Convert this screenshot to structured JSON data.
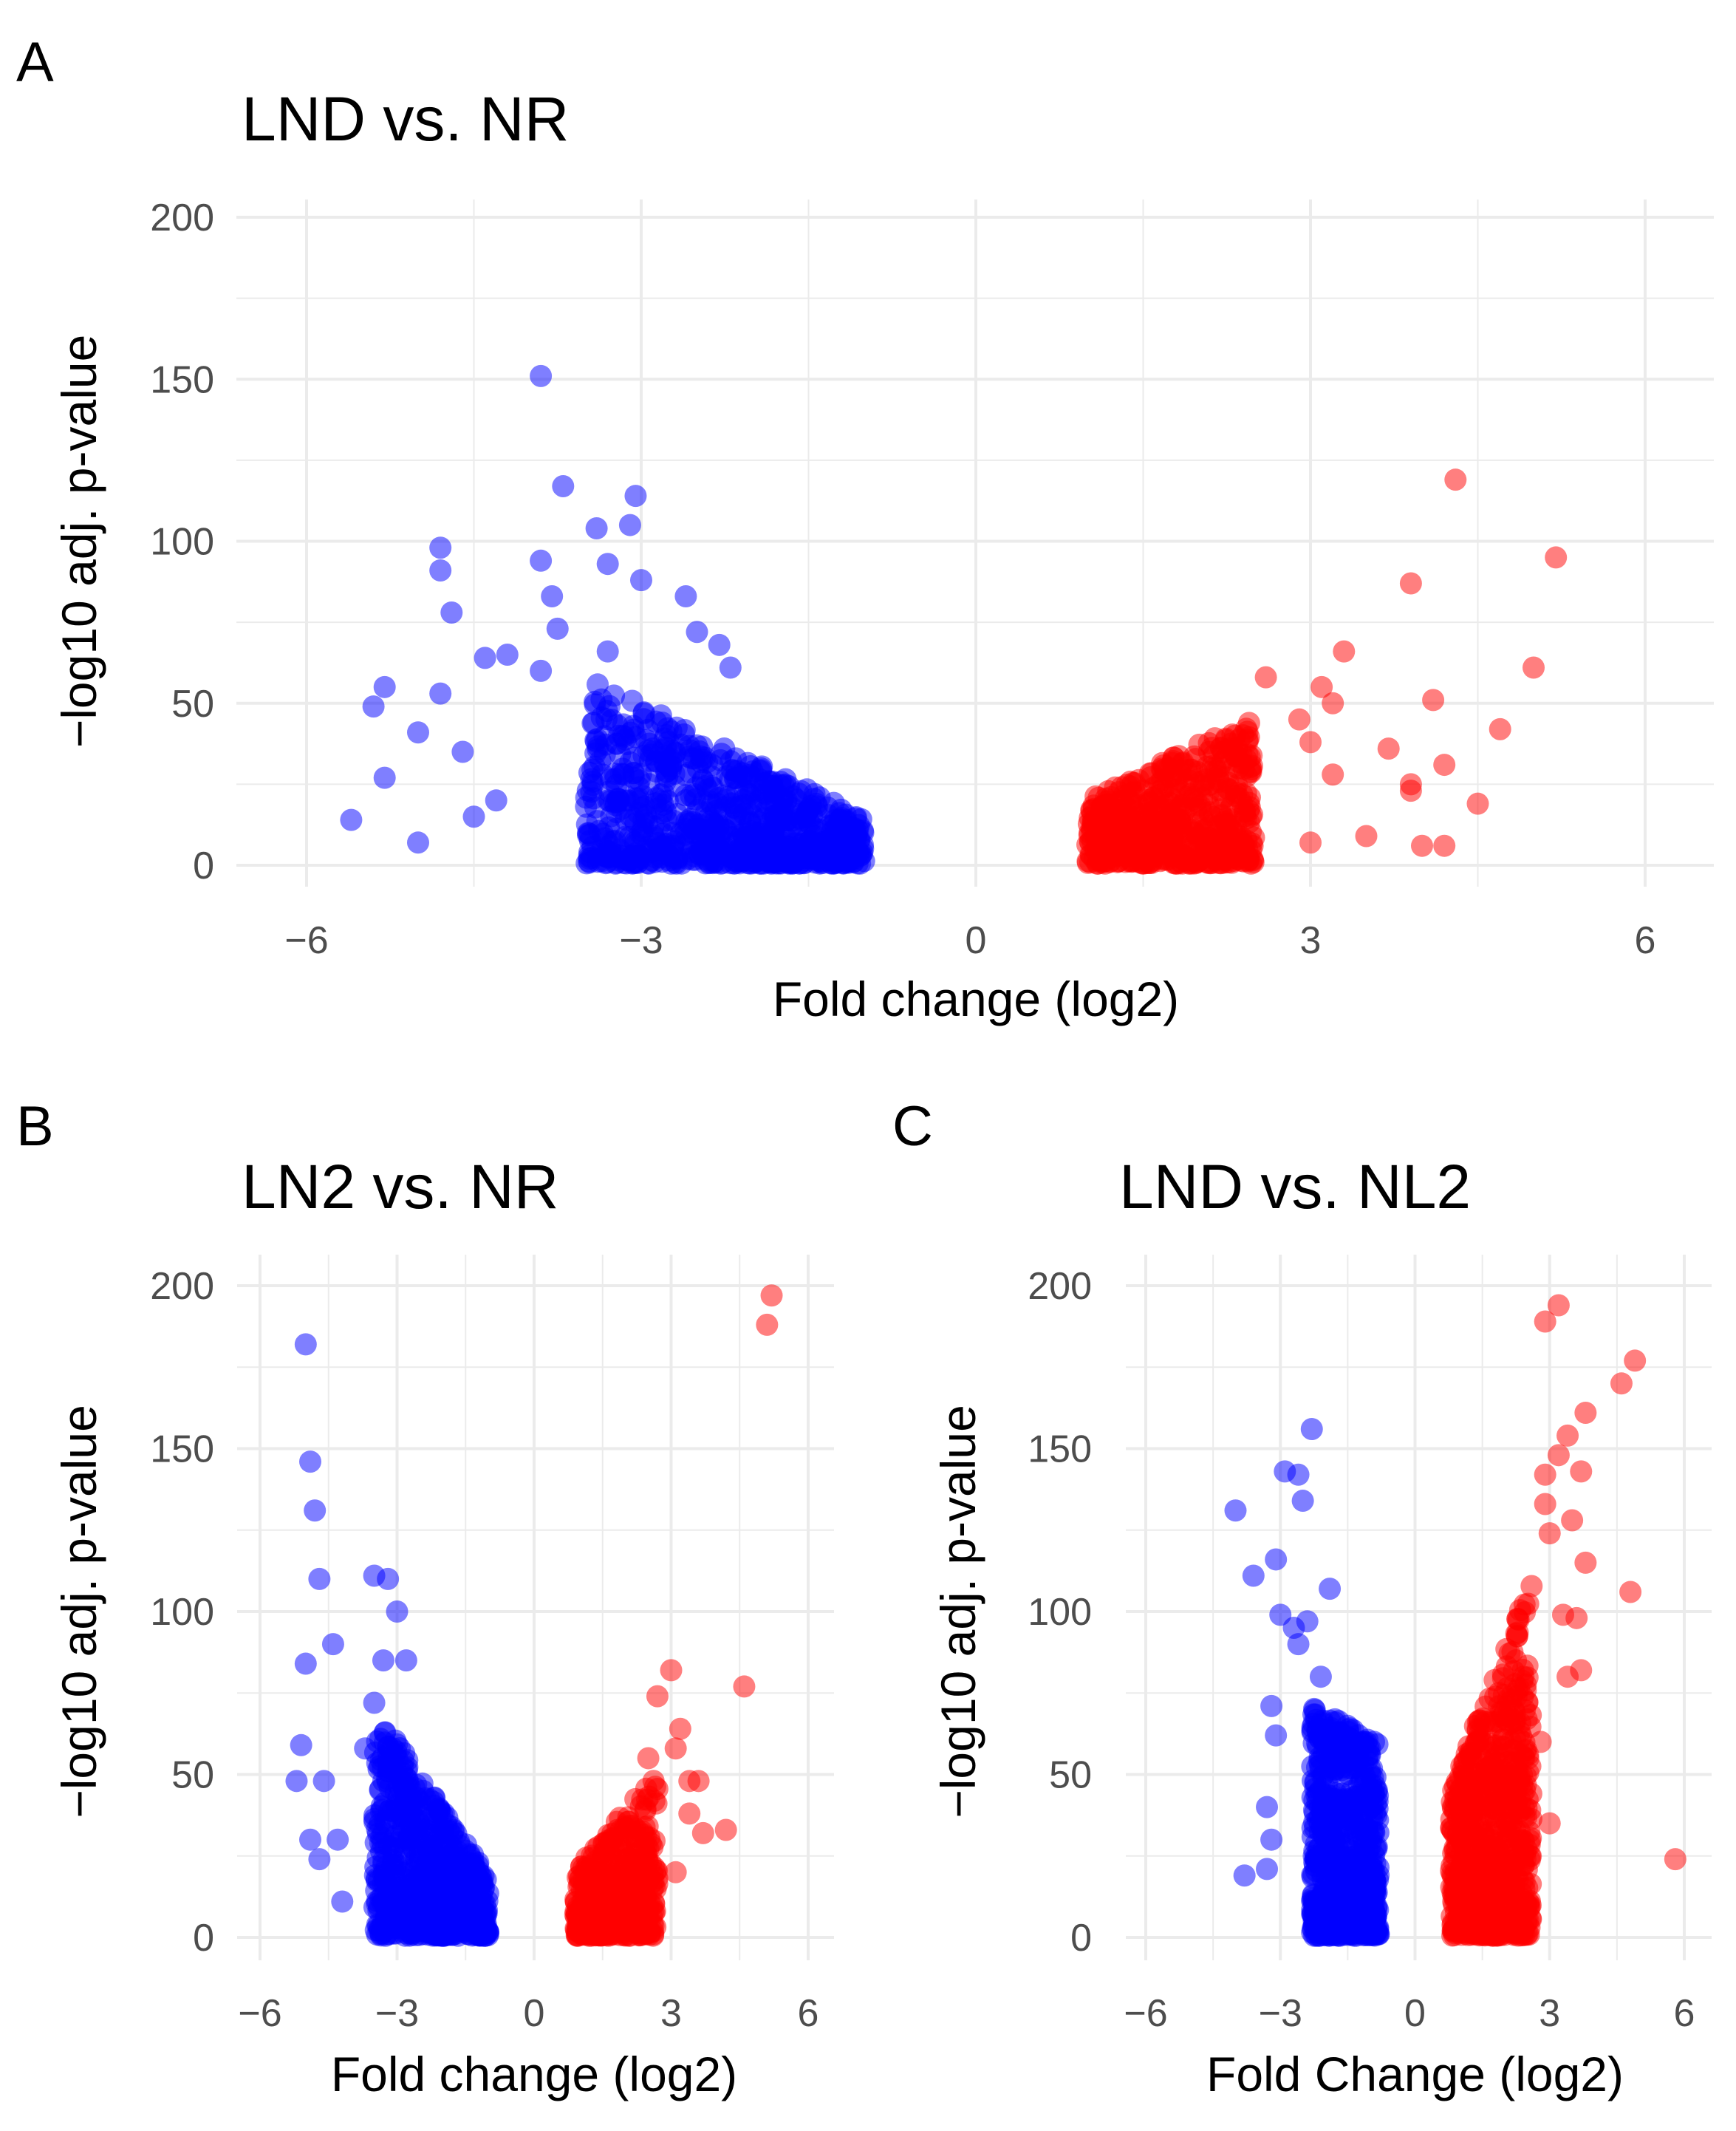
{
  "colors": {
    "down": "#0000ff",
    "up": "#ff0000",
    "grid": "#ebebeb"
  },
  "chart_data": [
    {
      "type": "scatter",
      "panel_letter": "A",
      "title": "LND vs. NR",
      "xlabel": "Fold change (log2)",
      "ylabel": "−log10 adj. p-value",
      "xlim": [
        -6.6,
        6.6
      ],
      "ylim": [
        -8,
        208
      ],
      "xticks": [
        -6,
        -3,
        0,
        3,
        6
      ],
      "xtick_labels": [
        "−6",
        "−3",
        "0",
        "3",
        "6"
      ],
      "yticks": [
        0,
        50,
        100,
        150,
        200
      ],
      "ytick_labels": [
        "0",
        "50",
        "100",
        "150",
        "200"
      ],
      "grid": true,
      "series": [
        {
          "name": "down",
          "color": "#0000ff",
          "points": [
            [
              -3.9,
              151
            ],
            [
              -3.7,
              117
            ],
            [
              -3.05,
              114
            ],
            [
              -3.4,
              104
            ],
            [
              -3.1,
              105
            ],
            [
              -4.8,
              98
            ],
            [
              -4.8,
              91
            ],
            [
              -3.9,
              94
            ],
            [
              -4.7,
              78
            ],
            [
              -3.3,
              93
            ],
            [
              -3.0,
              88
            ],
            [
              -2.6,
              83
            ],
            [
              -3.8,
              83
            ],
            [
              -3.75,
              73
            ],
            [
              -2.5,
              72
            ],
            [
              -4.2,
              65
            ],
            [
              -4.4,
              64
            ],
            [
              -3.9,
              60
            ],
            [
              -5.3,
              55
            ],
            [
              -5.4,
              49
            ],
            [
              -4.8,
              53
            ],
            [
              -5.0,
              41
            ],
            [
              -5.3,
              27
            ],
            [
              -5.6,
              14
            ],
            [
              -5.0,
              7
            ],
            [
              -3.3,
              66
            ],
            [
              -2.3,
              68
            ],
            [
              -2.2,
              61
            ],
            [
              -4.6,
              35
            ],
            [
              -4.3,
              20
            ],
            [
              -4.5,
              15
            ]
          ],
          "cluster": {
            "x": [
              -3.5,
              -1.0
            ],
            "ymax_at_xmin": 58,
            "ymax_at_xmax": 14,
            "count": 800
          }
        },
        {
          "name": "up",
          "color": "#ff0000",
          "points": [
            [
              4.3,
              119
            ],
            [
              5.2,
              95
            ],
            [
              3.9,
              87
            ],
            [
              3.3,
              66
            ],
            [
              5.0,
              61
            ],
            [
              2.6,
              58
            ],
            [
              3.1,
              55
            ],
            [
              3.2,
              50
            ],
            [
              4.1,
              51
            ],
            [
              4.7,
              42
            ],
            [
              3.7,
              36
            ],
            [
              4.2,
              31
            ],
            [
              3.9,
              23
            ],
            [
              4.5,
              19
            ],
            [
              4.2,
              6
            ],
            [
              4.0,
              6
            ],
            [
              3.0,
              7
            ],
            [
              3.5,
              9
            ],
            [
              3.9,
              25
            ],
            [
              3.0,
              38
            ],
            [
              2.9,
              45
            ],
            [
              3.2,
              28
            ]
          ],
          "cluster": {
            "x": [
              1.0,
              2.5
            ],
            "ymax_at_xmin": 20,
            "ymax_at_xmax": 45,
            "count": 550
          }
        }
      ]
    },
    {
      "type": "scatter",
      "panel_letter": "B",
      "title": "LN2 vs. NR",
      "xlabel": "Fold change (log2)",
      "ylabel": "−log10 adj. p-value",
      "xlim": [
        -6.6,
        6.6
      ],
      "ylim": [
        -8,
        208
      ],
      "xticks": [
        -6,
        -3,
        0,
        3,
        6
      ],
      "xtick_labels": [
        "−6",
        "−3",
        "0",
        "3",
        "6"
      ],
      "yticks": [
        0,
        50,
        100,
        150,
        200
      ],
      "ytick_labels": [
        "0",
        "50",
        "100",
        "150",
        "200"
      ],
      "grid": true,
      "series": [
        {
          "name": "down",
          "color": "#0000ff",
          "points": [
            [
              -5,
              182
            ],
            [
              -4.9,
              146
            ],
            [
              -4.8,
              131
            ],
            [
              -4.7,
              110
            ],
            [
              -5.0,
              84
            ],
            [
              -4.4,
              90
            ],
            [
              -3.5,
              111
            ],
            [
              -3.2,
              110
            ],
            [
              -3.0,
              100
            ],
            [
              -2.8,
              85
            ],
            [
              -3.3,
              85
            ],
            [
              -5.1,
              59
            ],
            [
              -5.2,
              48
            ],
            [
              -4.6,
              48
            ],
            [
              -4.9,
              30
            ],
            [
              -4.7,
              24
            ],
            [
              -3.5,
              72
            ],
            [
              -4.3,
              30
            ],
            [
              -4.2,
              11
            ],
            [
              -3.3,
              48
            ],
            [
              -3.7,
              58
            ]
          ],
          "cluster": {
            "x": [
              -3.5,
              -1.0
            ],
            "ymax_at_xmin": 70,
            "ymax_at_xmax": 18,
            "count": 650
          }
        },
        {
          "name": "up",
          "color": "#ff0000",
          "points": [
            [
              5.2,
              197
            ],
            [
              5.1,
              188
            ],
            [
              4.6,
              77
            ],
            [
              3.0,
              82
            ],
            [
              2.7,
              74
            ],
            [
              3.2,
              64
            ],
            [
              3.1,
              58
            ],
            [
              3.4,
              48
            ],
            [
              3.6,
              48
            ],
            [
              3.4,
              38
            ],
            [
              3.7,
              32
            ],
            [
              4.2,
              33
            ],
            [
              2.5,
              55
            ],
            [
              3.1,
              20
            ]
          ],
          "cluster": {
            "x": [
              0.9,
              2.7
            ],
            "ymax_at_xmin": 20,
            "ymax_at_xmax": 50,
            "count": 420
          }
        }
      ]
    },
    {
      "type": "scatter",
      "panel_letter": "C",
      "title": "LND vs. NL2",
      "xlabel": "Fold Change (log2)",
      "ylabel": "−log10 adj. p-value",
      "xlim": [
        -6.6,
        6.6
      ],
      "ylim": [
        -8,
        208
      ],
      "xticks": [
        -6,
        -3,
        0,
        3,
        6
      ],
      "xtick_labels": [
        "−6",
        "−3",
        "0",
        "3",
        "6"
      ],
      "yticks": [
        0,
        50,
        100,
        150,
        200
      ],
      "ytick_labels": [
        "0",
        "50",
        "100",
        "150",
        "200"
      ],
      "grid": true,
      "series": [
        {
          "name": "down",
          "color": "#0000ff",
          "points": [
            [
              -2.3,
              156
            ],
            [
              -2.9,
              143
            ],
            [
              -2.6,
              142
            ],
            [
              -4.0,
              131
            ],
            [
              -2.5,
              134
            ],
            [
              -3.6,
              111
            ],
            [
              -3.1,
              116
            ],
            [
              -1.9,
              107
            ],
            [
              -3.0,
              99
            ],
            [
              -2.4,
              97
            ],
            [
              -2.7,
              95
            ],
            [
              -3.2,
              71
            ],
            [
              -3.1,
              62
            ],
            [
              -3.3,
              40
            ],
            [
              -3.2,
              30
            ],
            [
              -3.8,
              19
            ],
            [
              -3.3,
              21
            ],
            [
              -2.1,
              80
            ],
            [
              -2.6,
              90
            ]
          ],
          "cluster": {
            "x": [
              -2.3,
              -0.8
            ],
            "ymax_at_xmin": 70,
            "ymax_at_xmax": 60,
            "count": 650
          }
        },
        {
          "name": "up",
          "color": "#ff0000",
          "points": [
            [
              3.2,
              194
            ],
            [
              2.9,
              189
            ],
            [
              4.9,
              177
            ],
            [
              4.6,
              170
            ],
            [
              3.8,
              161
            ],
            [
              3.4,
              154
            ],
            [
              3.2,
              148
            ],
            [
              3.7,
              143
            ],
            [
              2.9,
              142
            ],
            [
              3.5,
              128
            ],
            [
              3.0,
              124
            ],
            [
              3.8,
              115
            ],
            [
              4.8,
              106
            ],
            [
              3.3,
              99
            ],
            [
              3.6,
              98
            ],
            [
              5.8,
              24
            ],
            [
              3.4,
              80
            ],
            [
              3.7,
              82
            ],
            [
              2.9,
              133
            ],
            [
              2.8,
              60
            ],
            [
              3.0,
              35
            ]
          ],
          "cluster": {
            "x": [
              0.8,
              2.6
            ],
            "ymax_at_xmin": 45,
            "ymax_at_xmax": 110,
            "count": 750
          }
        }
      ]
    }
  ]
}
